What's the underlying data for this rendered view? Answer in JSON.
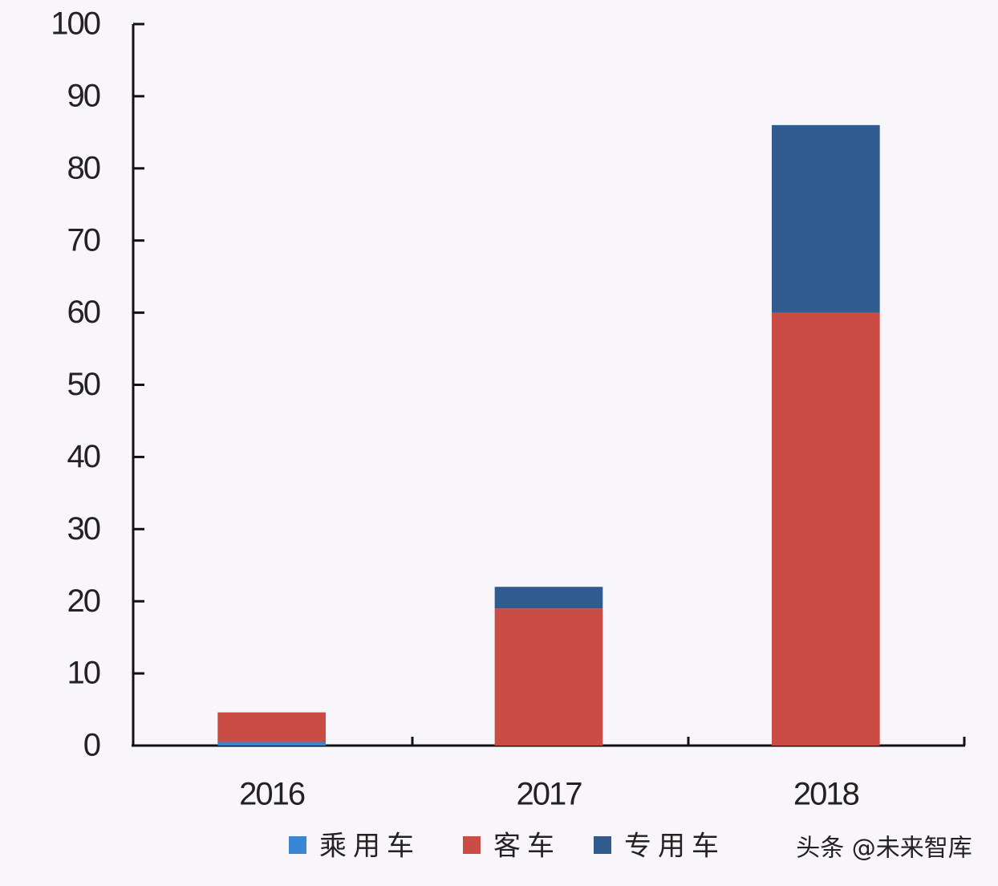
{
  "chart_data": {
    "type": "stacked-bar",
    "categories": [
      "2016",
      "2017",
      "2018"
    ],
    "series": [
      {
        "name": "乘用车",
        "color": "#3a86d4",
        "values": [
          0.5,
          0,
          0
        ]
      },
      {
        "name": "客车",
        "color": "#c94c45",
        "values": [
          4.1,
          19,
          60
        ]
      },
      {
        "name": "专用车",
        "color": "#2f5b8f",
        "values": [
          0,
          3,
          26
        ]
      }
    ],
    "ylim": [
      0,
      100
    ],
    "yticks": [
      0,
      10,
      20,
      30,
      40,
      50,
      60,
      70,
      80,
      90,
      100
    ],
    "watermark": "头条 @未来智库"
  }
}
